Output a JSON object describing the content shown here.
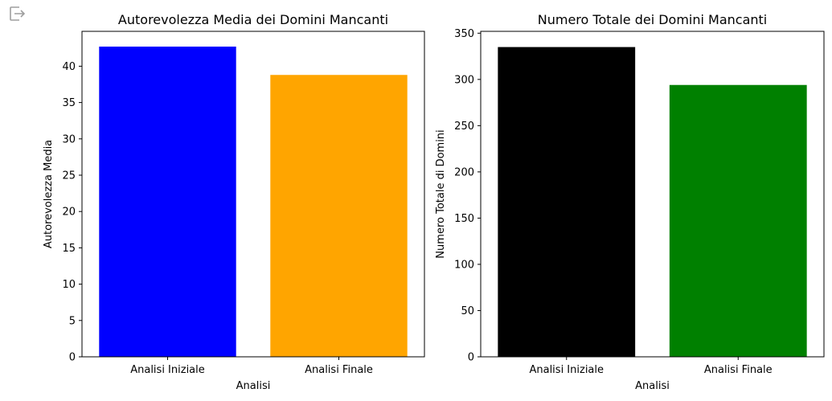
{
  "toolbar": {
    "export_icon": "exit-to-app-icon"
  },
  "chart_data": [
    {
      "type": "bar",
      "title": "Autorevolezza Media dei Domini Mancanti",
      "xlabel": "Analisi",
      "ylabel": "Autorevolezza Media",
      "categories": [
        "Analisi Iniziale",
        "Analisi Finale"
      ],
      "values": [
        42.7,
        38.8
      ],
      "colors": [
        "#0000ff",
        "#ffa500"
      ],
      "ylim": [
        0,
        44.8
      ],
      "yticks": [
        0,
        5,
        10,
        15,
        20,
        25,
        30,
        35,
        40
      ],
      "grid": false
    },
    {
      "type": "bar",
      "title": "Numero Totale dei Domini Mancanti",
      "xlabel": "Analisi",
      "ylabel": "Numero Totale di Domini",
      "categories": [
        "Analisi Iniziale",
        "Analisi Finale"
      ],
      "values": [
        335,
        294
      ],
      "colors": [
        "#000000",
        "#008000"
      ],
      "ylim": [
        0,
        352
      ],
      "yticks": [
        0,
        50,
        100,
        150,
        200,
        250,
        300,
        350
      ],
      "grid": false
    }
  ]
}
